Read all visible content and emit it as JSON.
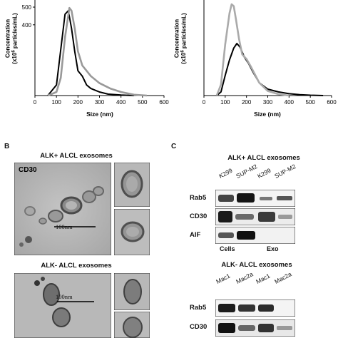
{
  "panel_b": {
    "letter": "B",
    "alk_pos_title": "ALK+ ALCL exosomes",
    "alk_neg_title": "ALK- ALCL exosomes",
    "cd30_label": "CD30",
    "scale_label_top": "100nm",
    "scale_label_bottom": "100nm"
  },
  "panel_c": {
    "letter": "C",
    "alk_pos_title": "ALK+ ALCL exosomes",
    "alk_neg_title": "ALK- ALCL exosomes",
    "top_lanes": [
      "K299",
      "SUP-M2",
      "K299",
      "SUP-M2"
    ],
    "bottom_lanes": [
      "Mac1",
      "Mac2a",
      "Mac1",
      "Mac2a"
    ],
    "top_rows": [
      "Rab5",
      "CD30",
      "AIF"
    ],
    "bottom_rows": [
      "Rab5",
      "CD30"
    ],
    "group_cells": "Cells",
    "group_exo": "Exo"
  },
  "chart_data": [
    {
      "type": "line",
      "title": "",
      "xlabel": "Size (nm)",
      "ylabel": "Concentration (x10^6 particles/mL)",
      "xlim": [
        0,
        600
      ],
      "ylim": [
        0,
        500
      ],
      "x_ticks": [
        "0",
        "100",
        "200",
        "300",
        "400",
        "500",
        "600"
      ],
      "y_ticks": [
        "400",
        "500"
      ],
      "series": [
        {
          "color": "#000000",
          "x": [
            60,
            100,
            120,
            140,
            155,
            170,
            185,
            200,
            220,
            240,
            260,
            280,
            300,
            340,
            400,
            460
          ],
          "y": [
            0,
            60,
            260,
            460,
            480,
            380,
            250,
            140,
            110,
            60,
            40,
            30,
            20,
            8,
            3,
            0
          ]
        },
        {
          "color": "#999999",
          "x": [
            60,
            100,
            120,
            140,
            160,
            170,
            185,
            200,
            220,
            260,
            300,
            350,
            400,
            460,
            520
          ],
          "y": [
            0,
            20,
            100,
            330,
            495,
            480,
            380,
            250,
            170,
            110,
            70,
            40,
            20,
            5,
            0
          ]
        }
      ]
    },
    {
      "type": "line",
      "title": "",
      "xlabel": "Size (nm)",
      "ylabel": "Concentration (x10^6 particles/mL)",
      "xlim": [
        0,
        600
      ],
      "ylim": [
        0,
        500
      ],
      "x_ticks": [
        "0",
        "100",
        "200",
        "300",
        "400",
        "500",
        "600"
      ],
      "y_ticks": [],
      "series": [
        {
          "color": "#000000",
          "x": [
            60,
            80,
            100,
            120,
            140,
            155,
            170,
            190,
            210,
            230,
            260,
            300,
            350,
            400,
            450,
            500,
            560
          ],
          "y": [
            0,
            20,
            110,
            195,
            260,
            285,
            265,
            210,
            175,
            130,
            70,
            35,
            20,
            10,
            5,
            2,
            0
          ]
        },
        {
          "color": "#aaaaaa",
          "x": [
            60,
            80,
            100,
            120,
            130,
            140,
            150,
            165,
            180,
            200,
            220,
            260,
            300,
            350,
            400
          ],
          "y": [
            0,
            60,
            280,
            450,
            500,
            490,
            420,
            310,
            225,
            200,
            160,
            70,
            25,
            8,
            0
          ]
        }
      ]
    }
  ]
}
